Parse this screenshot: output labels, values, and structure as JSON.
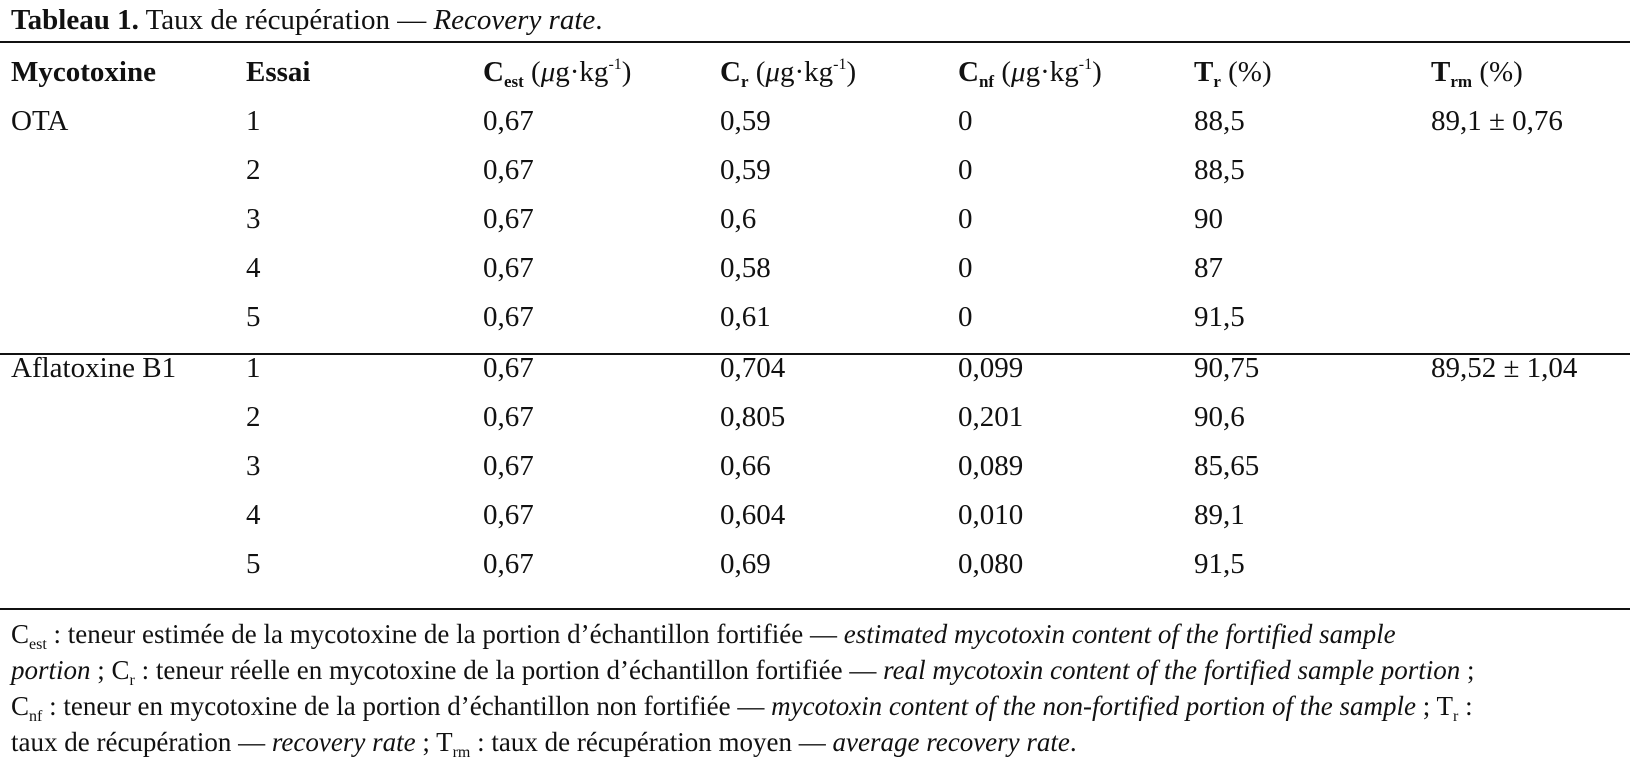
{
  "caption": {
    "label": "Tableau 1.",
    "title_fr": " Taux de récupération — ",
    "title_en": "Recovery rate",
    "end": "."
  },
  "table": {
    "headers": [
      {
        "main": "Mycotoxine",
        "sub": "",
        "unit_open": "",
        "mu": "",
        "unit_mid": "",
        "sup": "",
        "unit_close": ""
      },
      {
        "main": "Essai",
        "sub": "",
        "unit_open": "",
        "mu": "",
        "unit_mid": "",
        "sup": "",
        "unit_close": ""
      },
      {
        "main": "C",
        "sub": "est",
        "unit_open": " (",
        "mu": "μ",
        "unit_mid": "g·kg",
        "sup": "-1",
        "unit_close": ")"
      },
      {
        "main": "C",
        "sub": "r",
        "unit_open": " (",
        "mu": "μ",
        "unit_mid": "g·kg",
        "sup": "-1",
        "unit_close": ")"
      },
      {
        "main": "C",
        "sub": "nf",
        "unit_open": " (",
        "mu": "μ",
        "unit_mid": "g·kg",
        "sup": "-1",
        "unit_close": ")"
      },
      {
        "main": "T",
        "sub": "r",
        "unit_open": " (%)",
        "mu": "",
        "unit_mid": "",
        "sup": "",
        "unit_close": ""
      },
      {
        "main": "T",
        "sub": "rm",
        "unit_open": " (%)",
        "mu": "",
        "unit_mid": "",
        "sup": "",
        "unit_close": ""
      }
    ],
    "rows": [
      [
        "OTA",
        "1",
        "0,67",
        "0,59",
        "0",
        "88,5",
        "89,1 ± 0,76"
      ],
      [
        "",
        "2",
        "0,67",
        "0,59",
        "0",
        "88,5",
        ""
      ],
      [
        "",
        "3",
        "0,67",
        "0,6",
        "0",
        "90",
        ""
      ],
      [
        "",
        "4",
        "0,67",
        "0,58",
        "0",
        "87",
        ""
      ],
      [
        "",
        "5",
        "0,67",
        "0,61",
        "0",
        "91,5",
        ""
      ],
      [
        "Aflatoxine B1",
        "1",
        "0,67",
        "0,704",
        "0,099",
        "90,75",
        "89,52 ± 1,04"
      ],
      [
        "",
        "2",
        "0,67",
        "0,805",
        "0,201",
        "90,6",
        ""
      ],
      [
        "",
        "3",
        "0,67",
        "0,66",
        "0,089",
        "85,65",
        ""
      ],
      [
        "",
        "4",
        "0,67",
        "0,604",
        "0,010",
        "89,1",
        ""
      ],
      [
        "",
        "5",
        "0,67",
        "0,69",
        "0,080",
        "91,5",
        ""
      ]
    ]
  },
  "notes": {
    "n1_sym": "C",
    "n1_sub": "est",
    "n1_fr": " : teneur estimée de la mycotoxine de la portion d’échantillon fortifiée — ",
    "n1_en_a": "estimated mycotoxin content of the fortified sample",
    "n1_en_b": "portion",
    "n2_sep": " ; ",
    "n2_sym": "C",
    "n2_sub": "r",
    "n2_fr": " : teneur réelle en mycotoxine de la portion d’échantillon fortifiée — ",
    "n2_en": "real mycotoxin content of the fortified sample portion",
    "n2_end": " ;",
    "n3_sym": "C",
    "n3_sub": "nf",
    "n3_fr": " : teneur en mycotoxine de la portion d’échantillon non fortifiée — ",
    "n3_en": "mycotoxin content of the non-fortified portion of the sample",
    "n3_sep": " ; ",
    "n4_sym": "T",
    "n4_sub": "r",
    "n4_colon": " :",
    "n4_fr": "taux de récupération — ",
    "n4_en": "recovery rate",
    "n5_sep": " ; ",
    "n5_sym": "T",
    "n5_sub": "rm",
    "n5_fr": " : taux de récupération moyen — ",
    "n5_en": "average recovery rate",
    "n5_end": "."
  }
}
